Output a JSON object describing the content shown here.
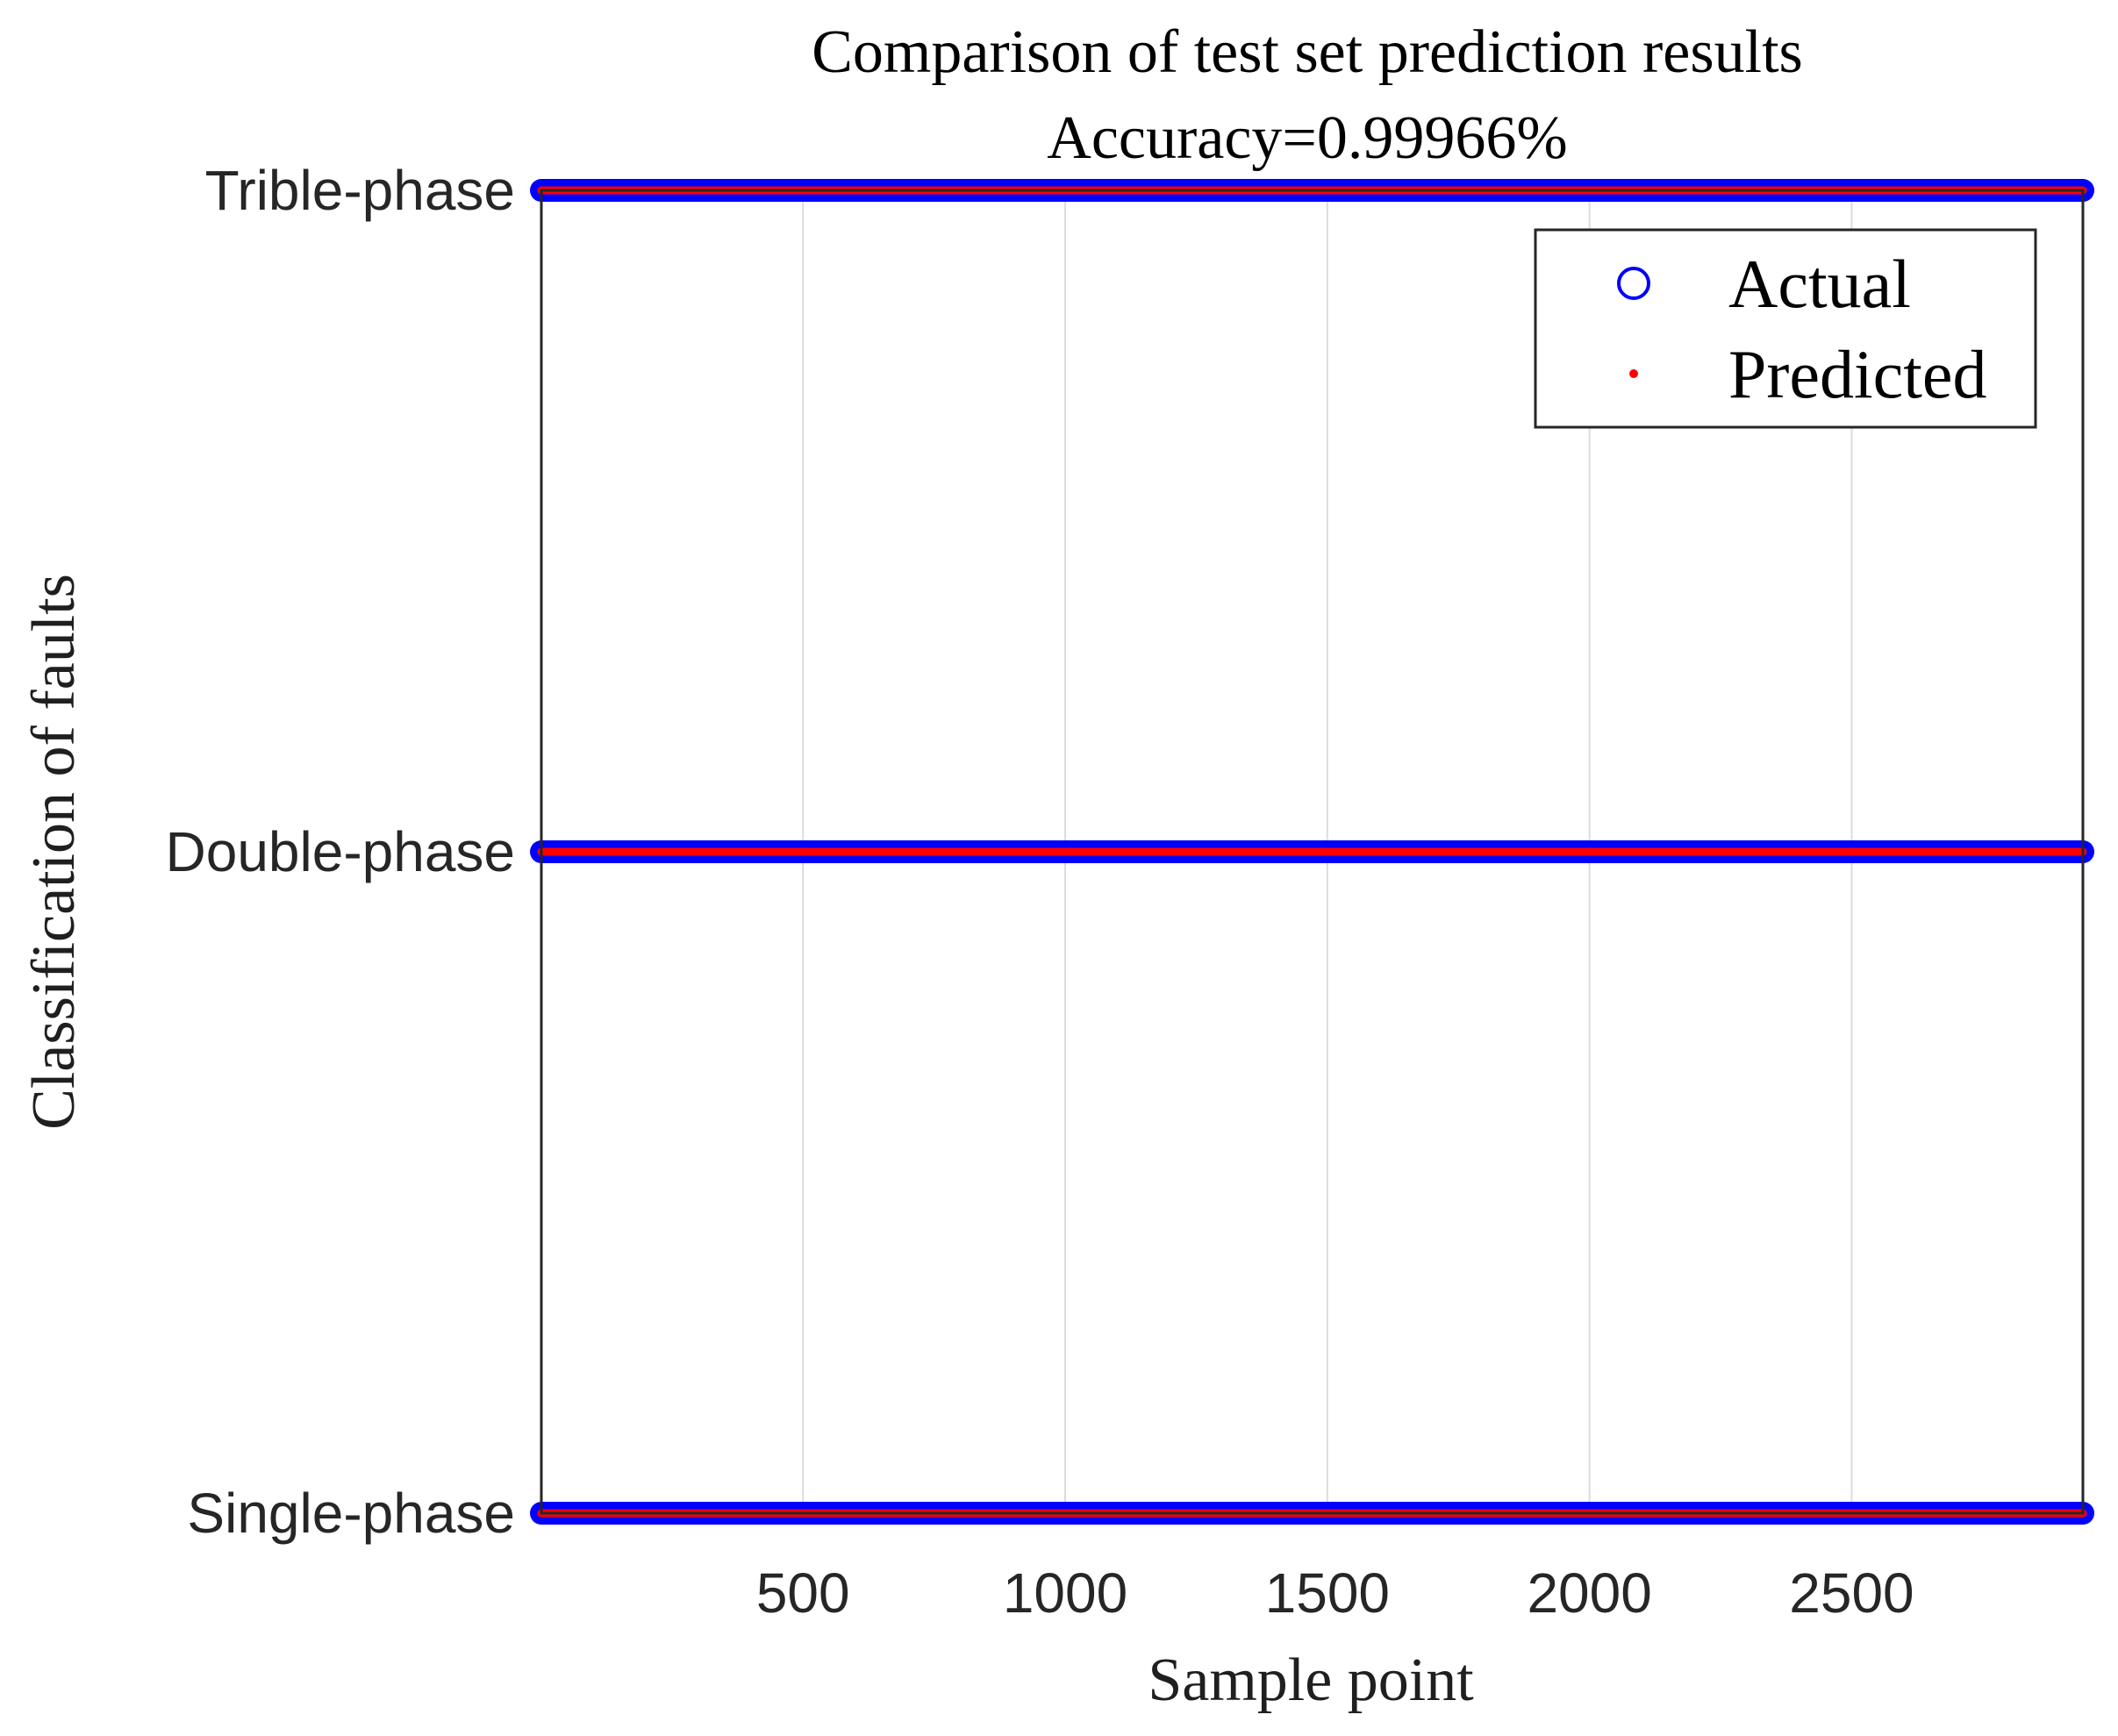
{
  "chart_data": {
    "type": "scatter",
    "title": "Comparison of test set prediction results",
    "subtitle": "Accuracy=0.99966%",
    "xlabel": "Sample point",
    "ylabel": "Classification of faults",
    "xlim": [
      1,
      2941
    ],
    "ylim": [
      1,
      3
    ],
    "x_ticks": [
      500,
      1000,
      1500,
      2000,
      2500
    ],
    "x_tick_labels": [
      "500",
      "1000",
      "1500",
      "2000",
      "2500"
    ],
    "y_ticks": [
      1,
      2,
      3
    ],
    "y_tick_labels": [
      "Single-phase",
      "Double-phase",
      "Trible-phase"
    ],
    "grid": "x-major",
    "legend_position": "top-right",
    "series": [
      {
        "name": "Actual",
        "marker": "circle-open",
        "color": "#0000ff",
        "segments": [
          {
            "class_value": 3,
            "x_start": 1,
            "x_end": 2941
          },
          {
            "class_value": 2,
            "x_start": 1,
            "x_end": 2941
          },
          {
            "class_value": 1,
            "x_start": 1,
            "x_end": 2941
          }
        ]
      },
      {
        "name": "Predicted",
        "marker": "dot",
        "color": "#ff0000",
        "segments": [
          {
            "class_value": 3,
            "x_start": 1,
            "x_end": 2941
          },
          {
            "class_value": 2,
            "x_start": 1,
            "x_end": 2941
          },
          {
            "class_value": 1,
            "x_start": 1,
            "x_end": 2941
          }
        ]
      }
    ],
    "colors": {
      "axes": "#262626",
      "grid": "#dcdcdc"
    }
  }
}
